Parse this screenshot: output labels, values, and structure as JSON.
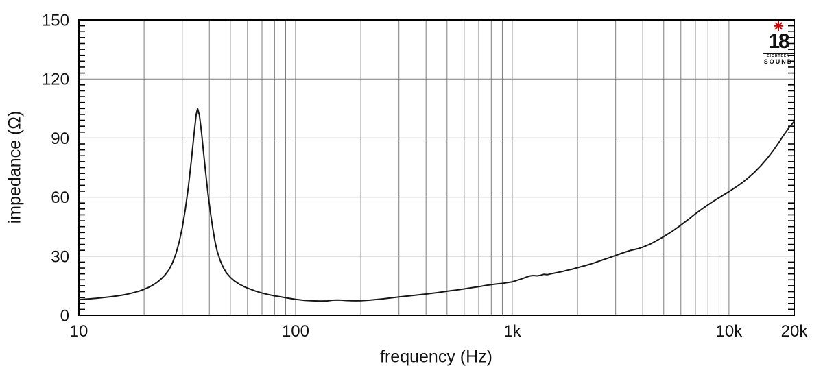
{
  "figure": {
    "x_axis_title": "frequency (Hz)",
    "y_axis_title": "impedance (Ω)",
    "logo": {
      "number": "18",
      "line1": "EIGHTEEN",
      "line2": "SOUND",
      "star_color": "#d40000"
    }
  },
  "colors": {
    "background": "#ffffff",
    "grid": "#7d7d7d",
    "axis": "#000000",
    "curve": "#161616",
    "text": "#111111",
    "logo_star": "#d40000"
  },
  "chart_data": {
    "type": "line",
    "title": "",
    "xlabel": "frequency (Hz)",
    "ylabel": "impedance (Ω)",
    "x_scale": "log",
    "xlim": [
      10,
      20000
    ],
    "ylim": [
      0,
      150
    ],
    "grid": true,
    "legend": "none",
    "x_gridlines": [
      20,
      30,
      40,
      50,
      60,
      70,
      80,
      90,
      100,
      200,
      300,
      400,
      500,
      600,
      700,
      800,
      900,
      1000,
      2000,
      3000,
      4000,
      5000,
      6000,
      7000,
      8000,
      9000,
      10000
    ],
    "y_gridlines": [
      30,
      60,
      90,
      120
    ],
    "y_minor_tick_step": 3,
    "x_ticks": [
      {
        "value": 10,
        "label": "10"
      },
      {
        "value": 100,
        "label": "100"
      },
      {
        "value": 1000,
        "label": "1k"
      },
      {
        "value": 10000,
        "label": "10k"
      },
      {
        "value": 20000,
        "label": "20k"
      }
    ],
    "y_ticks": [
      {
        "value": 0,
        "label": "0"
      },
      {
        "value": 30,
        "label": "30"
      },
      {
        "value": 60,
        "label": "60"
      },
      {
        "value": 90,
        "label": "90"
      },
      {
        "value": 120,
        "label": "120"
      },
      {
        "value": 150,
        "label": "150"
      }
    ],
    "series": [
      {
        "name": "impedance",
        "color": "#161616",
        "points": [
          [
            10,
            8.0
          ],
          [
            11,
            8.3
          ],
          [
            12,
            8.6
          ],
          [
            13,
            9.0
          ],
          [
            14,
            9.4
          ],
          [
            15,
            9.8
          ],
          [
            16,
            10.3
          ],
          [
            17,
            10.9
          ],
          [
            18,
            11.6
          ],
          [
            19,
            12.3
          ],
          [
            20,
            13.2
          ],
          [
            21,
            14.2
          ],
          [
            22,
            15.4
          ],
          [
            23,
            16.8
          ],
          [
            24,
            18.5
          ],
          [
            25,
            20.5
          ],
          [
            26,
            23
          ],
          [
            27,
            26.5
          ],
          [
            28,
            31
          ],
          [
            29,
            37
          ],
          [
            30,
            44.5
          ],
          [
            31,
            54
          ],
          [
            32,
            65
          ],
          [
            33,
            78
          ],
          [
            34,
            92
          ],
          [
            34.8,
            102
          ],
          [
            35.3,
            105
          ],
          [
            36,
            101.5
          ],
          [
            36.8,
            93
          ],
          [
            37.5,
            84
          ],
          [
            38.5,
            72
          ],
          [
            39.5,
            61
          ],
          [
            40.5,
            52
          ],
          [
            41.5,
            44
          ],
          [
            42.5,
            37.5
          ],
          [
            43.5,
            32.5
          ],
          [
            45,
            27.5
          ],
          [
            46.5,
            24
          ],
          [
            48,
            21.5
          ],
          [
            50,
            19.3
          ],
          [
            52,
            17.6
          ],
          [
            55,
            15.8
          ],
          [
            58,
            14.5
          ],
          [
            60,
            13.8
          ],
          [
            65,
            12.4
          ],
          [
            70,
            11.3
          ],
          [
            75,
            10.5
          ],
          [
            80,
            9.9
          ],
          [
            85,
            9.4
          ],
          [
            90,
            8.9
          ],
          [
            95,
            8.5
          ],
          [
            100,
            8.1
          ],
          [
            110,
            7.6
          ],
          [
            120,
            7.35
          ],
          [
            130,
            7.2
          ],
          [
            140,
            7.3
          ],
          [
            148,
            7.65
          ],
          [
            155,
            7.75
          ],
          [
            162,
            7.7
          ],
          [
            170,
            7.5
          ],
          [
            180,
            7.4
          ],
          [
            190,
            7.35
          ],
          [
            200,
            7.4
          ],
          [
            220,
            7.7
          ],
          [
            250,
            8.3
          ],
          [
            280,
            8.9
          ],
          [
            300,
            9.3
          ],
          [
            350,
            10.1
          ],
          [
            400,
            10.8
          ],
          [
            450,
            11.5
          ],
          [
            500,
            12.2
          ],
          [
            550,
            12.8
          ],
          [
            600,
            13.4
          ],
          [
            650,
            14.0
          ],
          [
            700,
            14.5
          ],
          [
            750,
            15.1
          ],
          [
            800,
            15.6
          ],
          [
            850,
            15.9
          ],
          [
            900,
            16.2
          ],
          [
            950,
            16.6
          ],
          [
            1000,
            17.0
          ],
          [
            1050,
            17.7
          ],
          [
            1100,
            18.4
          ],
          [
            1150,
            19.2
          ],
          [
            1200,
            19.9
          ],
          [
            1250,
            20.2
          ],
          [
            1300,
            20.0
          ],
          [
            1350,
            20.3
          ],
          [
            1400,
            20.8
          ],
          [
            1450,
            20.6
          ],
          [
            1500,
            21.0
          ],
          [
            1600,
            21.6
          ],
          [
            1700,
            22.2
          ],
          [
            1800,
            22.9
          ],
          [
            1900,
            23.5
          ],
          [
            2000,
            24.2
          ],
          [
            2200,
            25.4
          ],
          [
            2400,
            26.7
          ],
          [
            2600,
            28.0
          ],
          [
            2800,
            29.2
          ],
          [
            3000,
            30.4
          ],
          [
            3200,
            31.5
          ],
          [
            3500,
            32.9
          ],
          [
            3800,
            33.8
          ],
          [
            4000,
            34.6
          ],
          [
            4300,
            36.0
          ],
          [
            4600,
            37.7
          ],
          [
            5000,
            40.0
          ],
          [
            5500,
            42.8
          ],
          [
            6000,
            45.8
          ],
          [
            6500,
            48.7
          ],
          [
            7000,
            51.5
          ],
          [
            7500,
            53.9
          ],
          [
            8000,
            56.1
          ],
          [
            8500,
            58.0
          ],
          [
            9000,
            59.7
          ],
          [
            9500,
            61.3
          ],
          [
            10000,
            62.8
          ],
          [
            10500,
            64.3
          ],
          [
            11000,
            65.8
          ],
          [
            11500,
            67.3
          ],
          [
            12000,
            68.9
          ],
          [
            13000,
            72.2
          ],
          [
            14000,
            75.8
          ],
          [
            15000,
            79.6
          ],
          [
            16000,
            83.6
          ],
          [
            17000,
            87.8
          ],
          [
            18000,
            91.9
          ],
          [
            19000,
            95.5
          ],
          [
            20000,
            98.5
          ]
        ]
      }
    ]
  }
}
